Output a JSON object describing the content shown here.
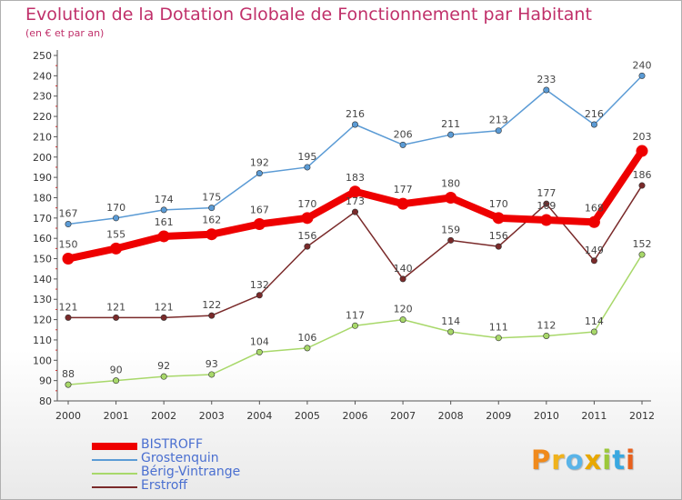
{
  "title": "Evolution de la Dotation Globale de Fonctionnement par Habitant",
  "subtitle": "(en € et par an)",
  "logo": {
    "text": "Proxiti",
    "letters": [
      "P",
      "r",
      "o",
      "x",
      "i",
      "t",
      "i"
    ],
    "colors": [
      "#f08a1c",
      "#f0b21c",
      "#5ab4e8",
      "#e8a800",
      "#9cc83a",
      "#3aa8e0",
      "#e8601c"
    ]
  },
  "chart_data": {
    "type": "line",
    "title": "Evolution de la Dotation Globale de Fonctionnement par Habitant",
    "subtitle": "(en € et par an)",
    "x": [
      "2000",
      "2001",
      "2002",
      "2003",
      "2004",
      "2005",
      "2006",
      "2007",
      "2008",
      "2009",
      "2010",
      "2011",
      "2012"
    ],
    "ylim": [
      80,
      250
    ],
    "yticks": [
      80,
      90,
      100,
      110,
      120,
      130,
      140,
      150,
      160,
      170,
      180,
      190,
      200,
      210,
      220,
      230,
      240,
      250
    ],
    "grid": false,
    "legend": "bottom-left",
    "series": [
      {
        "name": "BISTROFF",
        "color": "#ee0000",
        "values": [
          150,
          155,
          161,
          162,
          167,
          170,
          183,
          177,
          180,
          170,
          169,
          168,
          203
        ],
        "labels": [
          "150",
          "155",
          "161",
          "162",
          "167",
          "170",
          "183",
          "177",
          "180",
          "170",
          "169",
          "168",
          "203"
        ]
      },
      {
        "name": "Grostenquin",
        "color": "#5b9bd5",
        "values": [
          167,
          170,
          174,
          175,
          192,
          195,
          216,
          206,
          211,
          213,
          233,
          216,
          240
        ],
        "labels": [
          "167",
          "170",
          "174",
          "175",
          "192",
          "195",
          "216",
          "206",
          "211",
          "213",
          "233",
          "216",
          "240"
        ]
      },
      {
        "name": "Bérig-Vintrange",
        "color": "#a8d86a",
        "values": [
          88,
          90,
          92,
          93,
          104,
          106,
          117,
          120,
          114,
          111,
          112,
          114,
          152
        ],
        "labels": [
          "88",
          "90",
          "92",
          "93",
          "104",
          "106",
          "117",
          "120",
          "114",
          "111",
          "112",
          "114",
          "152"
        ]
      },
      {
        "name": "Erstroff",
        "color": "#7a2a2a",
        "values": [
          121,
          121,
          121,
          122,
          132,
          156,
          173,
          140,
          159,
          156,
          177,
          149,
          186
        ],
        "labels": [
          "121",
          "121",
          "121",
          "122",
          "132",
          "156",
          "173",
          "140",
          "159",
          "156",
          "177",
          "149",
          "186"
        ]
      }
    ]
  }
}
